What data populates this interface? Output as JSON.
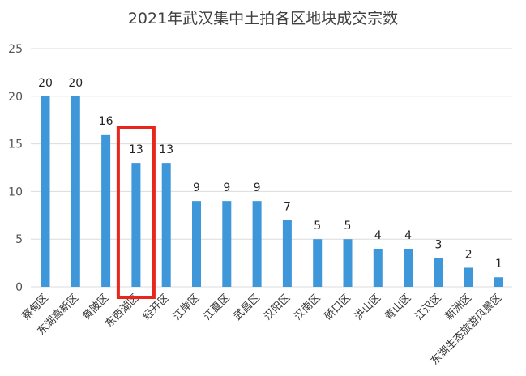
{
  "chart_data": {
    "type": "bar",
    "title": "2021年武汉集中土拍各区地块成交宗数",
    "xlabel": "",
    "ylabel": "",
    "ylim": [
      0,
      25
    ],
    "yticks": [
      0,
      5,
      10,
      15,
      20,
      25
    ],
    "grid": true,
    "legend": "none",
    "categories": [
      "蔡甸区",
      "东湖高新区",
      "黄陂区",
      "东西湖区",
      "经开区",
      "江岸区",
      "江夏区",
      "武昌区",
      "汉阳区",
      "汉南区",
      "硚口区",
      "洪山区",
      "青山区",
      "江汉区",
      "新洲区",
      "东湖生态旅游风景区"
    ],
    "values": [
      20,
      20,
      16,
      13,
      13,
      9,
      9,
      9,
      7,
      5,
      5,
      4,
      4,
      3,
      2,
      1
    ],
    "highlight_category": "东西湖区",
    "colors": {
      "bar": "#3d97d8",
      "highlight_box": "#e8261c",
      "grid": "#dcdcdc"
    }
  }
}
